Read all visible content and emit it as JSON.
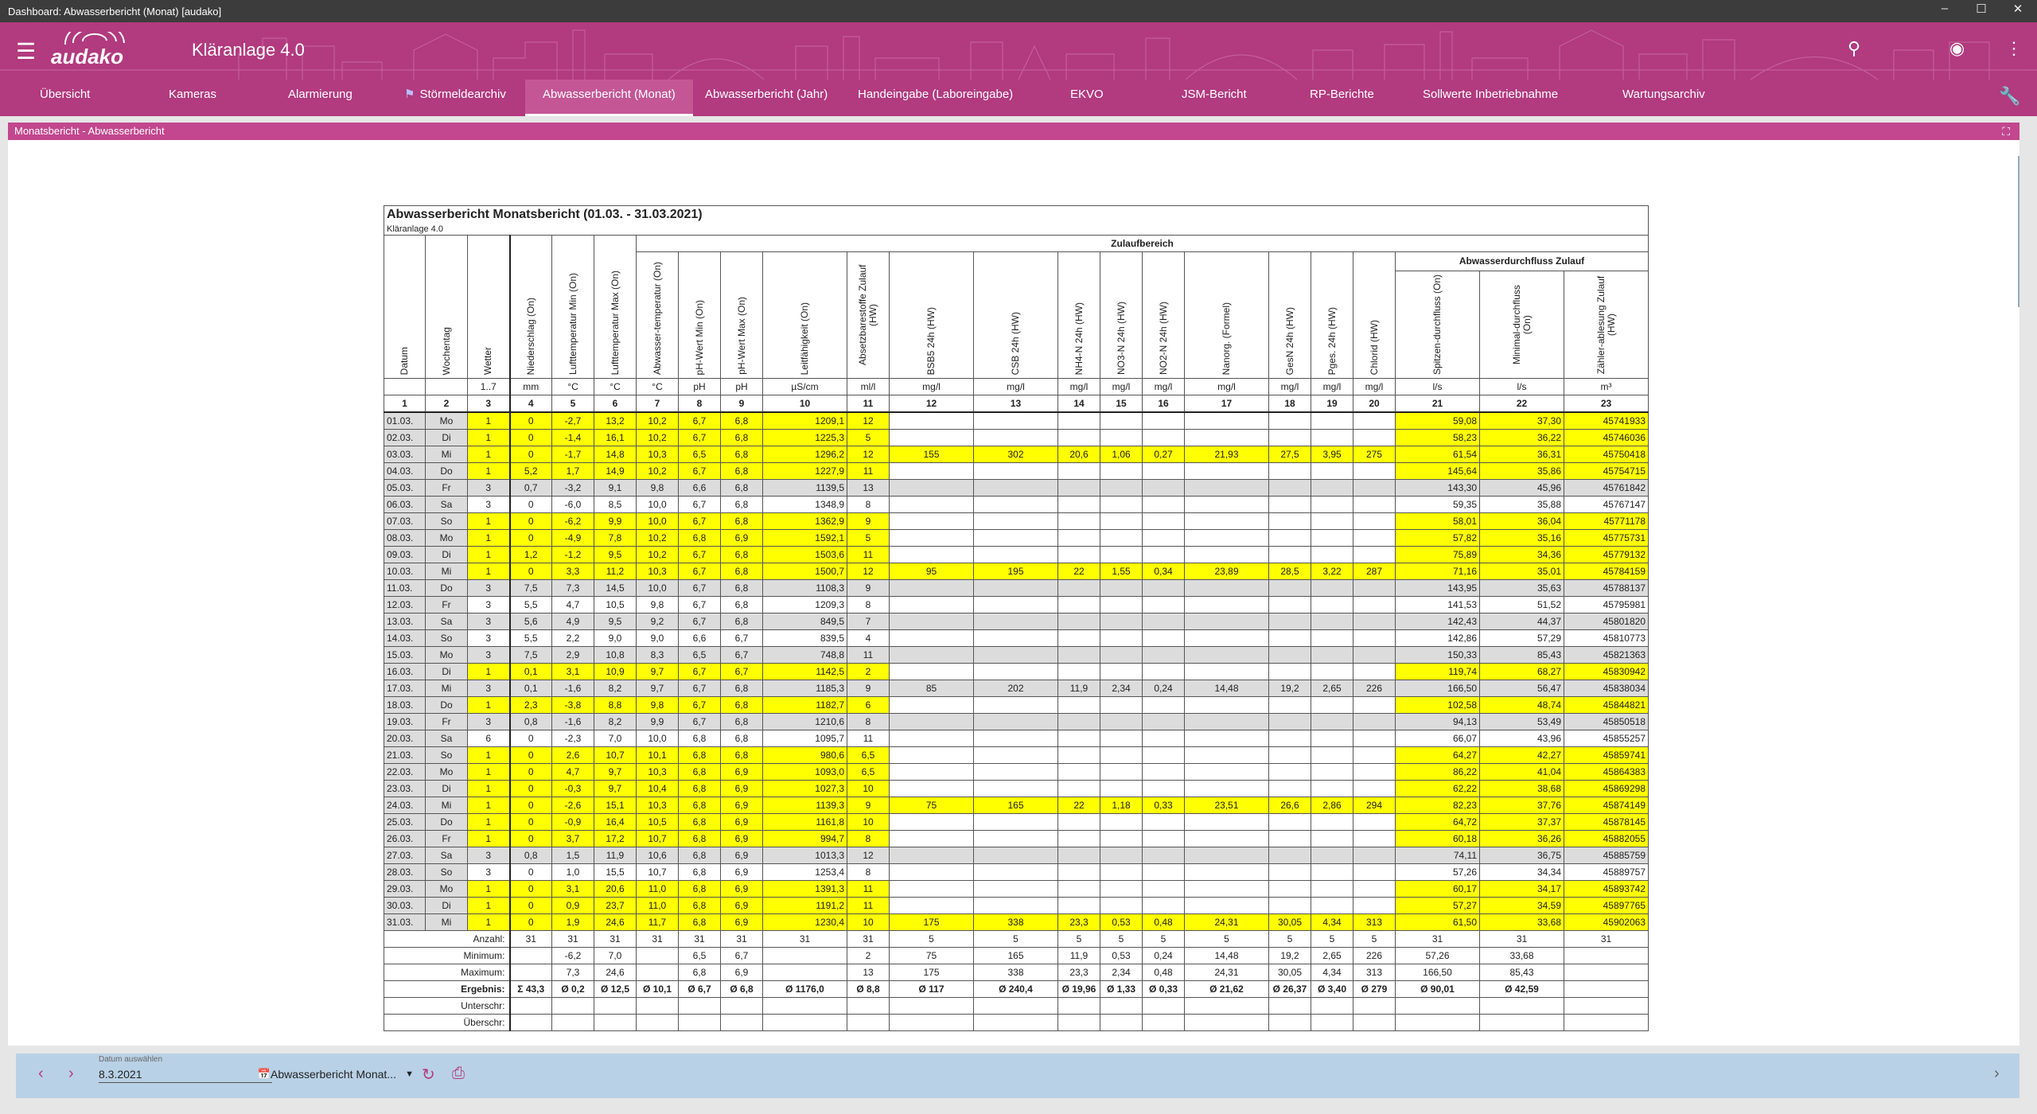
{
  "window": {
    "title": "Dashboard: Abwasserbericht (Monat) [audako]"
  },
  "app": {
    "logo": "audako",
    "title": "Kläranlage 4.0"
  },
  "nav": {
    "tabs": [
      "Übersicht",
      "Kameras",
      "Alarmierung",
      "Störmeldearchiv",
      "Abwasserbericht (Monat)",
      "Abwasserbericht (Jahr)",
      "Handeingabe (Laboreingabe)",
      "EKVO",
      "JSM-Bericht",
      "RP-Berichte",
      "Sollwerte Inbetriebnahme",
      "Wartungsarchiv"
    ],
    "active": "Abwasserbericht (Monat)"
  },
  "panel": {
    "title": "Monatsbericht - Abwasserbericht"
  },
  "report": {
    "title": "Abwasserbericht Monatsbericht (01.03. - 31.03.2021)",
    "subtitle": "Kläranlage 4.0",
    "group_zulauf": "Zulaufbereich",
    "group_durchfluss": "Abwasserdurchfluss Zulauf",
    "headers": [
      "Datum",
      "Wochentag",
      "Wetter",
      "Niederschlag (On)",
      "Lufttemperatur Min (On)",
      "Lufttemperatur Max (On)",
      "Abwasser-temperatur (On)",
      "pH-Wert Min (On)",
      "pH-Wert Max (On)",
      "Leitfähigkeit (On)",
      "Absetzbarestoffe Zulauf (HW)",
      "BSB5 24h (HW)",
      "CSB 24h (HW)",
      "NH4-N 24h (HW)",
      "NO3-N 24h (HW)",
      "NO2-N 24h (HW)",
      "Nanorg. (Formel)",
      "GesN 24h (HW)",
      "Pges. 24h (HW)",
      "Chlorid (HW)",
      "Spitzen-durchfluss (On)",
      "Minimal-durchfluss (On)",
      "Zähler-ablesung Zulauf (HW)"
    ],
    "units": [
      "",
      "",
      "1..7",
      "mm",
      "°C",
      "°C",
      "°C",
      "pH",
      "pH",
      "µS/cm",
      "ml/l",
      "mg/l",
      "mg/l",
      "mg/l",
      "mg/l",
      "mg/l",
      "mg/l",
      "mg/l",
      "mg/l",
      "mg/l",
      "l/s",
      "l/s",
      "m³"
    ],
    "colnums": [
      "1",
      "2",
      "3",
      "4",
      "5",
      "6",
      "7",
      "8",
      "9",
      "10",
      "11",
      "12",
      "13",
      "14",
      "15",
      "16",
      "17",
      "18",
      "19",
      "20",
      "21",
      "22",
      "23"
    ],
    "rows": [
      [
        "01.03.",
        "Mo",
        "1",
        "0",
        "-2,7",
        "13,2",
        "10,2",
        "6,7",
        "6,8",
        "1209,1",
        "12",
        "",
        "",
        "",
        "",
        "",
        "",
        "",
        "",
        "",
        "59,08",
        "37,30",
        "45741933"
      ],
      [
        "02.03.",
        "Di",
        "1",
        "0",
        "-1,4",
        "16,1",
        "10,2",
        "6,7",
        "6,8",
        "1225,3",
        "5",
        "",
        "",
        "",
        "",
        "",
        "",
        "",
        "",
        "",
        "58,23",
        "36,22",
        "45746036"
      ],
      [
        "03.03.",
        "Mi",
        "1",
        "0",
        "-1,7",
        "14,8",
        "10,3",
        "6,5",
        "6,8",
        "1296,2",
        "12",
        "155",
        "302",
        "20,6",
        "1,06",
        "0,27",
        "21,93",
        "27,5",
        "3,95",
        "275",
        "61,54",
        "36,31",
        "45750418"
      ],
      [
        "04.03.",
        "Do",
        "1",
        "5,2",
        "1,7",
        "14,9",
        "10,2",
        "6,7",
        "6,8",
        "1227,9",
        "11",
        "",
        "",
        "",
        "",
        "",
        "",
        "",
        "",
        "",
        "145,64",
        "35,86",
        "45754715"
      ],
      [
        "05.03.",
        "Fr",
        "3",
        "0,7",
        "-3,2",
        "9,1",
        "9,8",
        "6,6",
        "6,8",
        "1139,5",
        "13",
        "",
        "",
        "",
        "",
        "",
        "",
        "",
        "",
        "",
        "143,30",
        "45,96",
        "45761842"
      ],
      [
        "06.03.",
        "Sa",
        "3",
        "0",
        "-6,0",
        "8,5",
        "10,0",
        "6,7",
        "6,8",
        "1348,9",
        "8",
        "",
        "",
        "",
        "",
        "",
        "",
        "",
        "",
        "",
        "59,35",
        "35,88",
        "45767147"
      ],
      [
        "07.03.",
        "So",
        "1",
        "0",
        "-6,2",
        "9,9",
        "10,0",
        "6,7",
        "6,8",
        "1362,9",
        "9",
        "",
        "",
        "",
        "",
        "",
        "",
        "",
        "",
        "",
        "58,01",
        "36,04",
        "45771178"
      ],
      [
        "08.03.",
        "Mo",
        "1",
        "0",
        "-4,9",
        "7,8",
        "10,2",
        "6,8",
        "6,9",
        "1592,1",
        "5",
        "",
        "",
        "",
        "",
        "",
        "",
        "",
        "",
        "",
        "57,82",
        "35,16",
        "45775731"
      ],
      [
        "09.03.",
        "Di",
        "1",
        "1,2",
        "-1,2",
        "9,5",
        "10,2",
        "6,7",
        "6,8",
        "1503,6",
        "11",
        "",
        "",
        "",
        "",
        "",
        "",
        "",
        "",
        "",
        "75,89",
        "34,36",
        "45779132"
      ],
      [
        "10.03.",
        "Mi",
        "1",
        "0",
        "3,3",
        "11,2",
        "10,3",
        "6,7",
        "6,8",
        "1500,7",
        "12",
        "95",
        "195",
        "22",
        "1,55",
        "0,34",
        "23,89",
        "28,5",
        "3,22",
        "287",
        "71,16",
        "35,01",
        "45784159"
      ],
      [
        "11.03.",
        "Do",
        "3",
        "7,5",
        "7,3",
        "14,5",
        "10,0",
        "6,7",
        "6,8",
        "1108,3",
        "9",
        "",
        "",
        "",
        "",
        "",
        "",
        "",
        "",
        "",
        "143,95",
        "35,63",
        "45788137"
      ],
      [
        "12.03.",
        "Fr",
        "3",
        "5,5",
        "4,7",
        "10,5",
        "9,8",
        "6,7",
        "6,8",
        "1209,3",
        "8",
        "",
        "",
        "",
        "",
        "",
        "",
        "",
        "",
        "",
        "141,53",
        "51,52",
        "45795981"
      ],
      [
        "13.03.",
        "Sa",
        "3",
        "5,6",
        "4,9",
        "9,5",
        "9,2",
        "6,7",
        "6,8",
        "849,5",
        "7",
        "",
        "",
        "",
        "",
        "",
        "",
        "",
        "",
        "",
        "142,43",
        "44,37",
        "45801820"
      ],
      [
        "14.03.",
        "So",
        "3",
        "5,5",
        "2,2",
        "9,0",
        "9,0",
        "6,6",
        "6,7",
        "839,5",
        "4",
        "",
        "",
        "",
        "",
        "",
        "",
        "",
        "",
        "",
        "142,86",
        "57,29",
        "45810773"
      ],
      [
        "15.03.",
        "Mo",
        "3",
        "7,5",
        "2,9",
        "10,8",
        "8,3",
        "6,5",
        "6,7",
        "748,8",
        "11",
        "",
        "",
        "",
        "",
        "",
        "",
        "",
        "",
        "",
        "150,33",
        "85,43",
        "45821363"
      ],
      [
        "16.03.",
        "Di",
        "1",
        "0,1",
        "3,1",
        "10,9",
        "9,7",
        "6,7",
        "6,7",
        "1142,5",
        "2",
        "",
        "",
        "",
        "",
        "",
        "",
        "",
        "",
        "",
        "119,74",
        "68,27",
        "45830942"
      ],
      [
        "17.03.",
        "Mi",
        "3",
        "0,1",
        "-1,6",
        "8,2",
        "9,7",
        "6,7",
        "6,8",
        "1185,3",
        "9",
        "85",
        "202",
        "11,9",
        "2,34",
        "0,24",
        "14,48",
        "19,2",
        "2,65",
        "226",
        "166,50",
        "56,47",
        "45838034"
      ],
      [
        "18.03.",
        "Do",
        "1",
        "2,3",
        "-3,8",
        "8,8",
        "9,8",
        "6,7",
        "6,8",
        "1182,7",
        "6",
        "",
        "",
        "",
        "",
        "",
        "",
        "",
        "",
        "",
        "102,58",
        "48,74",
        "45844821"
      ],
      [
        "19.03.",
        "Fr",
        "3",
        "0,8",
        "-1,6",
        "8,2",
        "9,9",
        "6,7",
        "6,8",
        "1210,6",
        "8",
        "",
        "",
        "",
        "",
        "",
        "",
        "",
        "",
        "",
        "94,13",
        "53,49",
        "45850518"
      ],
      [
        "20.03.",
        "Sa",
        "6",
        "0",
        "-2,3",
        "7,0",
        "10,0",
        "6,8",
        "6,8",
        "1095,7",
        "11",
        "",
        "",
        "",
        "",
        "",
        "",
        "",
        "",
        "",
        "66,07",
        "43,96",
        "45855257"
      ],
      [
        "21.03.",
        "So",
        "1",
        "0",
        "2,6",
        "10,7",
        "10,1",
        "6,8",
        "6,8",
        "980,6",
        "6,5",
        "",
        "",
        "",
        "",
        "",
        "",
        "",
        "",
        "",
        "64,27",
        "42,27",
        "45859741"
      ],
      [
        "22.03.",
        "Mo",
        "1",
        "0",
        "4,7",
        "9,7",
        "10,3",
        "6,8",
        "6,9",
        "1093,0",
        "6,5",
        "",
        "",
        "",
        "",
        "",
        "",
        "",
        "",
        "",
        "86,22",
        "41,04",
        "45864383"
      ],
      [
        "23.03.",
        "Di",
        "1",
        "0",
        "-0,3",
        "9,7",
        "10,4",
        "6,8",
        "6,9",
        "1027,3",
        "10",
        "",
        "",
        "",
        "",
        "",
        "",
        "",
        "",
        "",
        "62,22",
        "38,68",
        "45869298"
      ],
      [
        "24.03.",
        "Mi",
        "1",
        "0",
        "-2,6",
        "15,1",
        "10,3",
        "6,8",
        "6,9",
        "1139,3",
        "9",
        "75",
        "165",
        "22",
        "1,18",
        "0,33",
        "23,51",
        "26,6",
        "2,86",
        "294",
        "82,23",
        "37,76",
        "45874149"
      ],
      [
        "25.03.",
        "Do",
        "1",
        "0",
        "-0,9",
        "16,4",
        "10,5",
        "6,8",
        "6,9",
        "1161,8",
        "10",
        "",
        "",
        "",
        "",
        "",
        "",
        "",
        "",
        "",
        "64,72",
        "37,37",
        "45878145"
      ],
      [
        "26.03.",
        "Fr",
        "1",
        "0",
        "3,7",
        "17,2",
        "10,7",
        "6,8",
        "6,9",
        "994,7",
        "8",
        "",
        "",
        "",
        "",
        "",
        "",
        "",
        "",
        "",
        "60,18",
        "36,26",
        "45882055"
      ],
      [
        "27.03.",
        "Sa",
        "3",
        "0,8",
        "1,5",
        "11,9",
        "10,6",
        "6,8",
        "6,9",
        "1013,3",
        "12",
        "",
        "",
        "",
        "",
        "",
        "",
        "",
        "",
        "",
        "74,11",
        "36,75",
        "45885759"
      ],
      [
        "28.03.",
        "So",
        "3",
        "0",
        "1,0",
        "15,5",
        "10,7",
        "6,8",
        "6,9",
        "1253,4",
        "8",
        "",
        "",
        "",
        "",
        "",
        "",
        "",
        "",
        "",
        "57,26",
        "34,34",
        "45889757"
      ],
      [
        "29.03.",
        "Mo",
        "1",
        "0",
        "3,1",
        "20,6",
        "11,0",
        "6,8",
        "6,9",
        "1391,3",
        "11",
        "",
        "",
        "",
        "",
        "",
        "",
        "",
        "",
        "",
        "60,17",
        "34,17",
        "45893742"
      ],
      [
        "30.03.",
        "Di",
        "1",
        "0",
        "0,9",
        "23,7",
        "11,0",
        "6,8",
        "6,9",
        "1191,2",
        "11",
        "",
        "",
        "",
        "",
        "",
        "",
        "",
        "",
        "",
        "57,27",
        "34,59",
        "45897765"
      ],
      [
        "31.03.",
        "Mi",
        "1",
        "0",
        "1,9",
        "24,6",
        "11,7",
        "6,8",
        "6,9",
        "1230,4",
        "10",
        "175",
        "338",
        "23,3",
        "0,53",
        "0,48",
        "24,31",
        "30,05",
        "4,34",
        "313",
        "61,50",
        "33,68",
        "45902063"
      ]
    ],
    "summary": [
      {
        "label": "Anzahl:",
        "values": [
          "31",
          "31",
          "31",
          "31",
          "31",
          "31",
          "31",
          "31",
          "5",
          "5",
          "5",
          "5",
          "5",
          "5",
          "5",
          "5",
          "5",
          "31",
          "31",
          "31"
        ]
      },
      {
        "label": "Minimum:",
        "values": [
          "",
          "-6,2",
          "7,0",
          "",
          "6,5",
          "6,7",
          "",
          "2",
          "75",
          "165",
          "11,9",
          "0,53",
          "0,24",
          "14,48",
          "19,2",
          "2,65",
          "226",
          "57,26",
          "33,68",
          ""
        ]
      },
      {
        "label": "Maximum:",
        "values": [
          "",
          "7,3",
          "24,6",
          "",
          "6,8",
          "6,9",
          "",
          "13",
          "175",
          "338",
          "23,3",
          "2,34",
          "0,48",
          "24,31",
          "30,05",
          "4,34",
          "313",
          "166,50",
          "85,43",
          ""
        ]
      },
      {
        "label": "Ergebnis:",
        "values": [
          "Σ 43,3",
          "Ø 0,2",
          "Ø 12,5",
          "Ø 10,1",
          "Ø 6,7",
          "Ø 6,8",
          "Ø 1176,0",
          "Ø 8,8",
          "Ø 117",
          "Ø 240,4",
          "Ø 19,96",
          "Ø 1,33",
          "Ø 0,33",
          "Ø 21,62",
          "Ø 26,37",
          "Ø 3,40",
          "Ø 279",
          "Ø 90,01",
          "Ø 42,59",
          ""
        ]
      },
      {
        "label": "Unterschr:",
        "values": [
          "",
          "",
          "",
          "",
          "",
          "",
          "",
          "",
          "",
          "",
          "",
          "",
          "",
          "",
          "",
          "",
          "",
          "",
          "",
          ""
        ]
      },
      {
        "label": "Überschr:",
        "values": [
          "",
          "",
          "",
          "",
          "",
          "",
          "",
          "",
          "",
          "",
          "",
          "",
          "",
          "",
          "",
          "",
          "",
          "",
          "",
          ""
        ]
      }
    ]
  },
  "bottom": {
    "date_label": "Datum auswählen",
    "date_value": "8.3.2021",
    "report_select": "Abwasserbericht Monat..."
  },
  "colors": {
    "brand": "#b23a7f",
    "highlight": "#ffff00",
    "weekend": "#dcdcdc",
    "bottom_bar": "#b9d1e6"
  }
}
